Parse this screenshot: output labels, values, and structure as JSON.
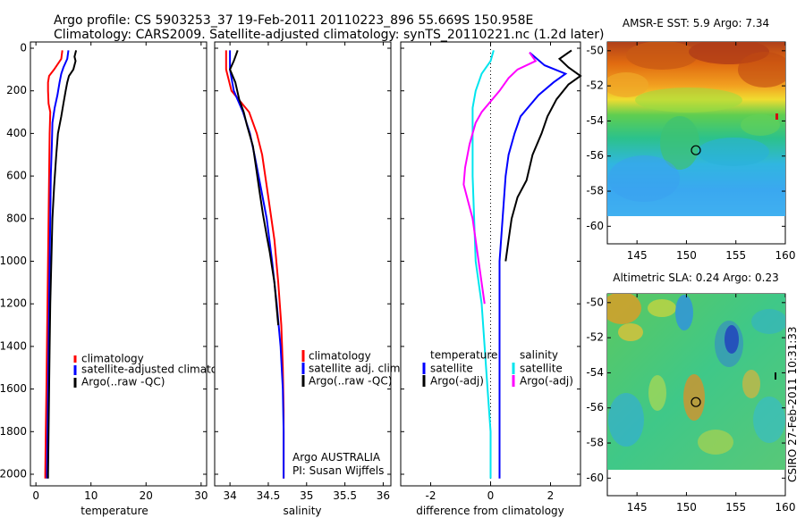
{
  "header": {
    "line1": "Argo profile: CS 5903253_37 19-Feb-2011 20110223_896 55.669S 150.958E",
    "line2": "Climatology: CARS2009. Satellite-adjusted climatology: synTS_20110221.nc (1.2d later)"
  },
  "side_text": "CSIRO 27-Feb-2011 10:31:33",
  "colors": {
    "climatology": "#ff0000",
    "satellite": "#0000ff",
    "argo": "#000000",
    "salinity_satellite": "#00e5ee",
    "salinity_argo": "#ff00ff"
  },
  "chart_data": [
    {
      "type": "line",
      "id": "temperature",
      "xlabel": "temperature",
      "xlim": [
        -1,
        31
      ],
      "xticks": [
        0,
        10,
        20,
        30
      ],
      "ylim": [
        0,
        2050
      ],
      "yticks": [
        0,
        200,
        400,
        600,
        800,
        1000,
        1200,
        1400,
        1600,
        1800,
        2000
      ],
      "y_reversed": true,
      "series": [
        {
          "name": "climatology",
          "color_key": "climatology",
          "points": [
            [
              4.8,
              10
            ],
            [
              4.6,
              50
            ],
            [
              3.3,
              100
            ],
            [
              2.4,
              130
            ],
            [
              2.2,
              160
            ],
            [
              2.2,
              200
            ],
            [
              2.3,
              260
            ],
            [
              2.6,
              300
            ],
            [
              2.5,
              400
            ],
            [
              2.4,
              600
            ],
            [
              2.3,
              800
            ],
            [
              2.2,
              1000
            ],
            [
              2.1,
              1200
            ],
            [
              2.0,
              1400
            ],
            [
              1.9,
              1600
            ],
            [
              1.8,
              1800
            ],
            [
              1.7,
              2000
            ],
            [
              1.7,
              2020
            ]
          ]
        },
        {
          "name": "satellite-adjusted climatology",
          "color_key": "satellite",
          "points": [
            [
              5.9,
              10
            ],
            [
              5.7,
              50
            ],
            [
              5.0,
              90
            ],
            [
              4.6,
              120
            ],
            [
              4.3,
              160
            ],
            [
              3.9,
              220
            ],
            [
              3.4,
              280
            ],
            [
              3.0,
              350
            ],
            [
              2.9,
              450
            ],
            [
              2.7,
              600
            ],
            [
              2.6,
              800
            ],
            [
              2.5,
              1000
            ],
            [
              2.4,
              1200
            ],
            [
              2.3,
              1400
            ],
            [
              2.2,
              1600
            ],
            [
              2.1,
              1800
            ],
            [
              2.0,
              2000
            ],
            [
              2.0,
              2020
            ]
          ]
        },
        {
          "name": "Argo(..raw -QC)",
          "color_key": "argo",
          "points": [
            [
              7.3,
              10
            ],
            [
              7.0,
              40
            ],
            [
              7.2,
              60
            ],
            [
              6.8,
              100
            ],
            [
              6.0,
              130
            ],
            [
              5.7,
              160
            ],
            [
              5.4,
              200
            ],
            [
              5.0,
              260
            ],
            [
              4.6,
              320
            ],
            [
              4.0,
              400
            ],
            [
              3.7,
              500
            ],
            [
              3.3,
              650
            ],
            [
              3.0,
              800
            ],
            [
              2.8,
              1000
            ],
            [
              2.6,
              1200
            ],
            [
              2.5,
              1400
            ],
            [
              2.4,
              1600
            ],
            [
              2.3,
              1800
            ],
            [
              2.2,
              2000
            ],
            [
              2.2,
              2020
            ]
          ]
        }
      ],
      "legend": {
        "position": "lower-right",
        "entries": [
          "climatology",
          "satellite-adjusted climatology",
          "Argo(..raw -QC)"
        ]
      }
    },
    {
      "type": "line",
      "id": "salinity",
      "xlabel": "salinity",
      "xlim": [
        33.8,
        36.1
      ],
      "xticks": [
        34,
        34.5,
        35,
        35.5,
        36
      ],
      "ylim": [
        0,
        2050
      ],
      "y_reversed": true,
      "series": [
        {
          "name": "climatology",
          "color_key": "climatology",
          "points": [
            [
              33.95,
              10
            ],
            [
              33.95,
              100
            ],
            [
              34.02,
              200
            ],
            [
              34.25,
              300
            ],
            [
              34.35,
              400
            ],
            [
              34.42,
              500
            ],
            [
              34.5,
              700
            ],
            [
              34.58,
              900
            ],
            [
              34.63,
              1100
            ],
            [
              34.67,
              1300
            ],
            [
              34.69,
              1500
            ],
            [
              34.7,
              1700
            ],
            [
              34.7,
              1900
            ],
            [
              34.7,
              2020
            ]
          ]
        },
        {
          "name": "satellite adj. clim.",
          "color_key": "satellite",
          "points": [
            [
              34.0,
              10
            ],
            [
              34.0,
              100
            ],
            [
              34.05,
              200
            ],
            [
              34.17,
              300
            ],
            [
              34.26,
              400
            ],
            [
              34.32,
              500
            ],
            [
              34.4,
              650
            ],
            [
              34.48,
              800
            ],
            [
              34.55,
              1000
            ],
            [
              34.61,
              1200
            ],
            [
              34.66,
              1400
            ],
            [
              34.69,
              1600
            ],
            [
              34.7,
              1800
            ],
            [
              34.7,
              2020
            ]
          ]
        },
        {
          "name": "Argo(..raw -QC)",
          "color_key": "argo",
          "points": [
            [
              34.1,
              10
            ],
            [
              34.05,
              60
            ],
            [
              34.0,
              100
            ],
            [
              34.07,
              160
            ],
            [
              34.12,
              240
            ],
            [
              34.18,
              300
            ],
            [
              34.22,
              360
            ],
            [
              34.3,
              460
            ],
            [
              34.34,
              560
            ],
            [
              34.38,
              660
            ],
            [
              34.43,
              780
            ],
            [
              34.48,
              880
            ],
            [
              34.52,
              960
            ],
            [
              34.58,
              1100
            ],
            [
              34.63,
              1300
            ]
          ]
        }
      ],
      "legend": {
        "position": "lower-right",
        "entries": [
          "climatology",
          "satellite adj. clim.",
          "Argo(..raw -QC)"
        ]
      },
      "annotations": [
        "Argo AUSTRALIA",
        "PI: Susan Wijffels"
      ]
    },
    {
      "type": "line",
      "id": "difference",
      "xlabel": "difference from climatology",
      "xlim": [
        -3,
        3
      ],
      "xticks": [
        -2,
        0,
        2
      ],
      "ylim": [
        0,
        2050
      ],
      "y_reversed": true,
      "series": [
        {
          "name": "temperature satellite",
          "color_key": "satellite",
          "points": [
            [
              1.3,
              20
            ],
            [
              1.8,
              80
            ],
            [
              2.5,
              120
            ],
            [
              2.1,
              160
            ],
            [
              1.6,
              220
            ],
            [
              1.0,
              320
            ],
            [
              0.8,
              400
            ],
            [
              0.6,
              500
            ],
            [
              0.5,
              600
            ],
            [
              0.4,
              800
            ],
            [
              0.3,
              1000
            ],
            [
              0.3,
              1400
            ],
            [
              0.3,
              2020
            ]
          ]
        },
        {
          "name": "temperature Argo(-adj)",
          "color_key": "argo",
          "points": [
            [
              2.7,
              10
            ],
            [
              2.3,
              50
            ],
            [
              2.6,
              90
            ],
            [
              3.0,
              130
            ],
            [
              2.6,
              170
            ],
            [
              2.2,
              240
            ],
            [
              1.9,
              320
            ],
            [
              1.7,
              400
            ],
            [
              1.4,
              500
            ],
            [
              1.2,
              620
            ],
            [
              0.9,
              700
            ],
            [
              0.7,
              800
            ],
            [
              0.6,
              900
            ],
            [
              0.5,
              1000
            ]
          ]
        },
        {
          "name": "salinity satellite",
          "color_key": "salinity_satellite",
          "points": [
            [
              0.1,
              10
            ],
            [
              0.0,
              60
            ],
            [
              -0.3,
              120
            ],
            [
              -0.5,
              200
            ],
            [
              -0.6,
              280
            ],
            [
              -0.6,
              400
            ],
            [
              -0.6,
              600
            ],
            [
              -0.55,
              800
            ],
            [
              -0.5,
              1000
            ],
            [
              -0.3,
              1200
            ],
            [
              -0.2,
              1400
            ],
            [
              -0.1,
              1600
            ],
            [
              0.0,
              1800
            ],
            [
              0.0,
              2020
            ]
          ]
        },
        {
          "name": "salinity Argo(-adj)",
          "color_key": "salinity_argo",
          "points": [
            [
              1.3,
              20
            ],
            [
              1.5,
              60
            ],
            [
              0.9,
              100
            ],
            [
              0.6,
              140
            ],
            [
              0.3,
              200
            ],
            [
              -0.3,
              300
            ],
            [
              -0.5,
              350
            ],
            [
              -0.7,
              450
            ],
            [
              -0.85,
              560
            ],
            [
              -0.9,
              640
            ],
            [
              -0.75,
              720
            ],
            [
              -0.6,
              800
            ],
            [
              -0.4,
              1000
            ],
            [
              -0.2,
              1200
            ]
          ]
        }
      ],
      "legend": {
        "position": "lower-center",
        "temperature_heading": "temperature",
        "salinity_heading": "salinity",
        "entries": [
          "satellite",
          "Argo(-adj)",
          "satellite",
          "Argo(-adj)"
        ]
      }
    },
    {
      "type": "heatmap",
      "id": "sst_map",
      "title": "AMSR-E SST: 5.9 Argo: 7.34",
      "xlim": [
        142,
        160
      ],
      "ylim": [
        -61,
        -49.5
      ],
      "xticks": [
        145,
        150,
        155,
        160
      ],
      "yticks": [
        -50,
        -52,
        -54,
        -56,
        -58,
        -60
      ],
      "data_lat_range": [
        -60,
        -49.5
      ],
      "profile_marker": {
        "lon": 150.958,
        "lat": -55.669
      }
    },
    {
      "type": "heatmap",
      "id": "sla_map",
      "title": "Altimetric SLA: 0.24 Argo: 0.23",
      "xlim": [
        142,
        160
      ],
      "ylim": [
        -61,
        -49.5
      ],
      "xticks": [
        145,
        150,
        155,
        160
      ],
      "yticks": [
        -50,
        -52,
        -54,
        -56,
        -58,
        -60
      ],
      "data_lat_range": [
        -60,
        -49.5
      ],
      "profile_marker": {
        "lon": 150.958,
        "lat": -55.669
      }
    }
  ]
}
